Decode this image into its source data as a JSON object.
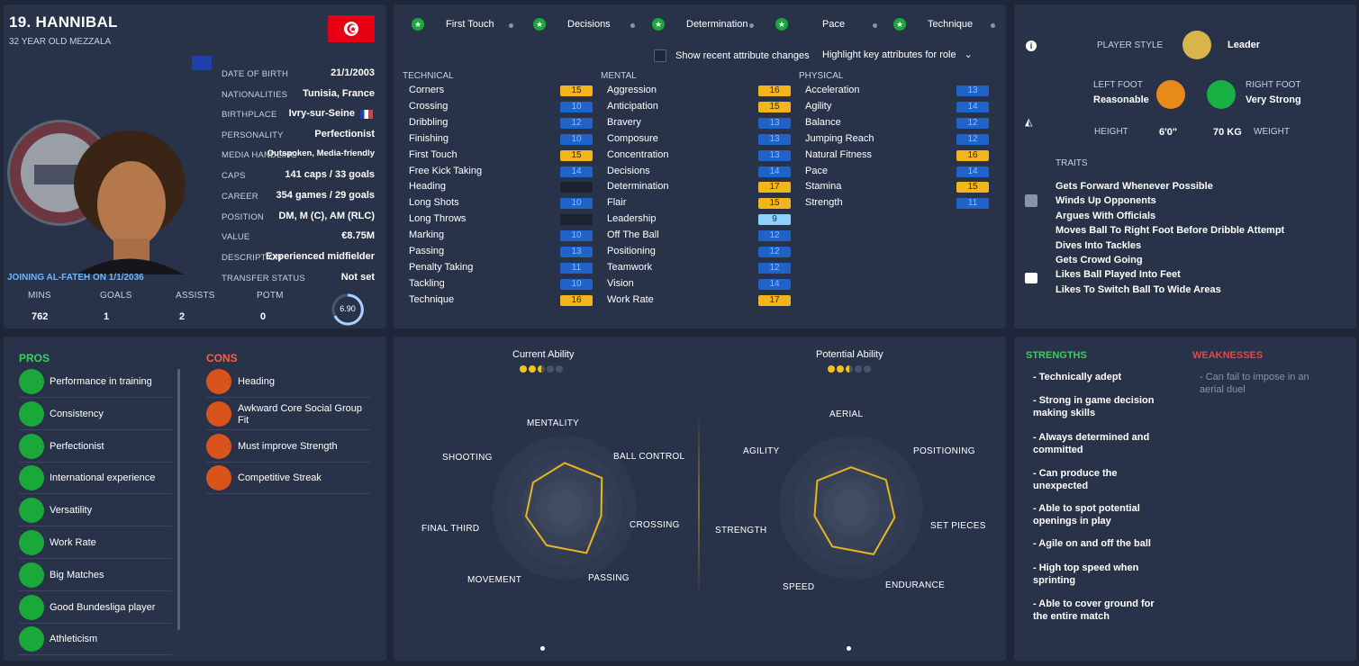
{
  "player": {
    "name": "19. HANNIBAL",
    "subtitle": "32 YEAR OLD MEZZALA",
    "joining": "JOINING AL-FATEH ON 1/1/2036"
  },
  "details": [
    {
      "label": "DATE OF BIRTH",
      "value": "21/1/2003"
    },
    {
      "label": "NATIONALITIES",
      "value": "Tunisia, France"
    },
    {
      "label": "BIRTHPLACE",
      "value": "Ivry-sur-Seine"
    },
    {
      "label": "PERSONALITY",
      "value": "Perfectionist"
    },
    {
      "label": "MEDIA HANDLING",
      "value": "Outspoken, Media-friendly"
    },
    {
      "label": "CAPS",
      "value": "141 caps / 33 goals"
    },
    {
      "label": "CAREER",
      "value": "354 games /  29 goals"
    },
    {
      "label": "POSITION",
      "value": "DM, M (C), AM (RLC)"
    },
    {
      "label": "VALUE",
      "value": "€8.75M"
    },
    {
      "label": "DESCRIPTION",
      "value": "Experienced midfielder"
    },
    {
      "label": "TRANSFER STATUS",
      "value": "Not set"
    }
  ],
  "stats": {
    "headers": [
      "MINS",
      "GOALS",
      "ASSISTS",
      "POTM"
    ],
    "values": [
      "762",
      "1",
      "2",
      "0"
    ],
    "rating": "6.90"
  },
  "key_attrs": [
    "First Touch",
    "Decisions",
    "Determination",
    "Pace",
    "Technique"
  ],
  "options": {
    "show_changes": "Show recent attribute changes",
    "highlight": "Highlight key attributes for role"
  },
  "attributes": {
    "technical_title": "TECHNICAL",
    "mental_title": "MENTAL",
    "physical_title": "PHYSICAL",
    "technical": [
      {
        "name": "Corners",
        "value": "15",
        "c": "y"
      },
      {
        "name": "Crossing",
        "value": "10",
        "c": "b"
      },
      {
        "name": "Dribbling",
        "value": "12",
        "c": "b"
      },
      {
        "name": "Finishing",
        "value": "10",
        "c": "b"
      },
      {
        "name": "First Touch",
        "value": "15",
        "c": "y"
      },
      {
        "name": "Free Kick Taking",
        "value": "14",
        "c": "b"
      },
      {
        "name": "Heading",
        "value": "",
        "c": "d"
      },
      {
        "name": "Long Shots",
        "value": "10",
        "c": "b"
      },
      {
        "name": "Long Throws",
        "value": "",
        "c": "d"
      },
      {
        "name": "Marking",
        "value": "10",
        "c": "b"
      },
      {
        "name": "Passing",
        "value": "13",
        "c": "b"
      },
      {
        "name": "Penalty Taking",
        "value": "11",
        "c": "b"
      },
      {
        "name": "Tackling",
        "value": "10",
        "c": "b"
      },
      {
        "name": "Technique",
        "value": "16",
        "c": "y"
      }
    ],
    "mental": [
      {
        "name": "Aggression",
        "value": "16",
        "c": "y"
      },
      {
        "name": "Anticipation",
        "value": "15",
        "c": "y"
      },
      {
        "name": "Bravery",
        "value": "13",
        "c": "b"
      },
      {
        "name": "Composure",
        "value": "13",
        "c": "b"
      },
      {
        "name": "Concentration",
        "value": "13",
        "c": "b"
      },
      {
        "name": "Decisions",
        "value": "14",
        "c": "b"
      },
      {
        "name": "Determination",
        "value": "17",
        "c": "y"
      },
      {
        "name": "Flair",
        "value": "15",
        "c": "y"
      },
      {
        "name": "Leadership",
        "value": "9",
        "c": "l"
      },
      {
        "name": "Off The Ball",
        "value": "12",
        "c": "b"
      },
      {
        "name": "Positioning",
        "value": "12",
        "c": "b"
      },
      {
        "name": "Teamwork",
        "value": "12",
        "c": "b"
      },
      {
        "name": "Vision",
        "value": "14",
        "c": "b"
      },
      {
        "name": "Work Rate",
        "value": "17",
        "c": "y"
      }
    ],
    "physical": [
      {
        "name": "Acceleration",
        "value": "13",
        "c": "b"
      },
      {
        "name": "Agility",
        "value": "14",
        "c": "b"
      },
      {
        "name": "Balance",
        "value": "12",
        "c": "b"
      },
      {
        "name": "Jumping Reach",
        "value": "12",
        "c": "b"
      },
      {
        "name": "Natural Fitness",
        "value": "16",
        "c": "y"
      },
      {
        "name": "Pace",
        "value": "14",
        "c": "b"
      },
      {
        "name": "Stamina",
        "value": "15",
        "c": "y"
      },
      {
        "name": "Strength",
        "value": "11",
        "c": "b"
      }
    ]
  },
  "style": {
    "player_style_label": "PLAYER STYLE",
    "player_style": "Leader",
    "left_foot_label": "LEFT FOOT",
    "left_foot": "Reasonable",
    "right_foot_label": "RIGHT FOOT",
    "right_foot": "Very Strong",
    "height_label": "HEIGHT",
    "height": "6'0\"",
    "weight": "70 KG",
    "weight_label": "WEIGHT",
    "traits_label": "TRAITS"
  },
  "traits": [
    "Gets Forward Whenever Possible",
    "Winds Up Opponents",
    "Argues With Officials",
    "Moves Ball To Right Foot Before Dribble Attempt",
    "Dives Into Tackles",
    "Gets Crowd Going",
    "Likes Ball Played Into Feet",
    "Likes To Switch Ball To Wide Areas"
  ],
  "pros_title": "PROS",
  "pros": [
    "Performance in training",
    "Consistency",
    "Perfectionist",
    "International experience",
    "Versatility",
    "Work Rate",
    "Big Matches",
    "Good Bundesliga player",
    "Athleticism"
  ],
  "cons_title": "CONS",
  "cons": [
    "Heading",
    "Awkward Core Social Group Fit",
    "Must improve Strength",
    "Competitive Streak"
  ],
  "abilities": {
    "current_label": "Current Ability",
    "potential_label": "Potential Ability",
    "current_stars": 2.5,
    "potential_stars": 2.5
  },
  "radar_left": {
    "labels": [
      "MENTALITY",
      "BALL CONTROL",
      "CROSSING",
      "PASSING",
      "MOVEMENT",
      "FINAL THIRD",
      "SHOOTING"
    ],
    "values": [
      0.62,
      0.66,
      0.52,
      0.7,
      0.58,
      0.55,
      0.56
    ]
  },
  "radar_right": {
    "labels": [
      "AERIAL",
      "POSITIONING",
      "SET PIECES",
      "ENDURANCE",
      "SPEED",
      "STRENGTH",
      "AGILITY"
    ],
    "values": [
      0.56,
      0.62,
      0.62,
      0.72,
      0.6,
      0.52,
      0.6
    ]
  },
  "strengths_title": "STRENGTHS",
  "weaknesses_title": "WEAKNESSES",
  "strengths": [
    "- Technically adept",
    "- Strong in game decision making skills",
    "- Always determined and committed",
    "- Can produce the unexpected",
    "- Able to spot potential openings in play",
    "- Agile on and off the ball",
    "- High top speed when sprinting",
    "- Able to cover ground for the entire match"
  ],
  "weaknesses": [
    "- Can fail to impose in an aerial duel"
  ],
  "colors": {
    "panel": "#283349",
    "accent_yellow": "#f2b51c",
    "accent_blue": "#1f63c8",
    "pros_green": "#19a83a",
    "cons_orange": "#d9531c",
    "strength_green": "#38d05a",
    "weakness_red": "#e5474b"
  }
}
